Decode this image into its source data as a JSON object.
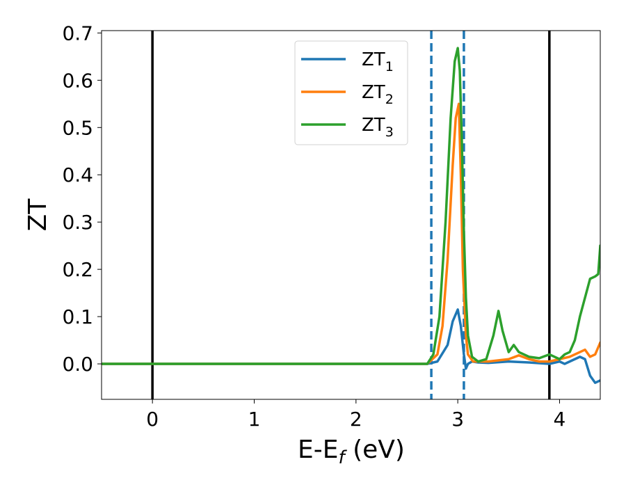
{
  "chart_data": {
    "type": "line",
    "xlabel": "E-E",
    "xlabel_subscript": "f",
    "xlabel_suffix": " (eV)",
    "ylabel": "ZT",
    "xlim": [
      -0.5,
      4.4
    ],
    "ylim": [
      -0.075,
      0.705
    ],
    "x_ticks": [
      0,
      1,
      2,
      3,
      4
    ],
    "y_ticks": [
      0.0,
      0.1,
      0.2,
      0.3,
      0.4,
      0.5,
      0.6,
      0.7
    ],
    "x_tick_labels": [
      "0",
      "1",
      "2",
      "3",
      "4"
    ],
    "y_tick_labels": [
      "0.0",
      "0.1",
      "0.2",
      "0.3",
      "0.4",
      "0.5",
      "0.6",
      "0.7"
    ],
    "grid": false,
    "legend_position": "top-center",
    "vertical_lines": [
      {
        "x": 0.0,
        "style": "solid",
        "color": "#000000"
      },
      {
        "x": 3.9,
        "style": "solid",
        "color": "#000000"
      },
      {
        "x": 2.74,
        "style": "dashed",
        "color": "#1f77b4"
      },
      {
        "x": 3.06,
        "style": "dashed",
        "color": "#1f77b4"
      }
    ],
    "series": [
      {
        "name": "ZT",
        "name_subscript": "1",
        "color": "#1f77b4",
        "x": [
          -0.5,
          2.7,
          2.8,
          2.9,
          2.95,
          3.0,
          3.03,
          3.06,
          3.08,
          3.1,
          3.14,
          3.2,
          3.3,
          3.5,
          3.7,
          3.9,
          4.0,
          4.05,
          4.1,
          4.15,
          4.2,
          4.25,
          4.3,
          4.35,
          4.4
        ],
        "y": [
          0.0,
          0.0,
          0.005,
          0.04,
          0.09,
          0.115,
          0.08,
          0.02,
          -0.01,
          0.0,
          0.005,
          0.003,
          0.002,
          0.005,
          0.003,
          0.0,
          0.005,
          0.0,
          0.005,
          0.01,
          0.015,
          0.01,
          -0.025,
          -0.04,
          -0.035
        ]
      },
      {
        "name": "ZT",
        "name_subscript": "2",
        "color": "#ff7f0e",
        "x": [
          -0.5,
          2.7,
          2.8,
          2.85,
          2.9,
          2.95,
          2.98,
          3.01,
          3.03,
          3.05,
          3.08,
          3.1,
          3.15,
          3.3,
          3.5,
          3.6,
          3.7,
          3.8,
          3.9,
          4.0,
          4.1,
          4.2,
          4.25,
          4.3,
          4.35,
          4.4
        ],
        "y": [
          0.0,
          0.0,
          0.02,
          0.08,
          0.22,
          0.42,
          0.52,
          0.55,
          0.4,
          0.2,
          0.06,
          0.02,
          0.005,
          0.005,
          0.01,
          0.018,
          0.01,
          0.005,
          0.005,
          0.01,
          0.015,
          0.025,
          0.03,
          0.015,
          0.02,
          0.045
        ]
      },
      {
        "name": "ZT",
        "name_subscript": "3",
        "color": "#2ca02c",
        "x": [
          -0.5,
          2.7,
          2.76,
          2.82,
          2.88,
          2.93,
          2.97,
          3.0,
          3.02,
          3.04,
          3.06,
          3.08,
          3.1,
          3.14,
          3.2,
          3.28,
          3.35,
          3.4,
          3.44,
          3.5,
          3.55,
          3.6,
          3.65,
          3.7,
          3.8,
          3.9,
          4.0,
          4.05,
          4.1,
          4.15,
          4.2,
          4.25,
          4.3,
          4.35,
          4.38,
          4.4
        ],
        "y": [
          0.0,
          0.0,
          0.02,
          0.1,
          0.3,
          0.52,
          0.64,
          0.668,
          0.62,
          0.47,
          0.28,
          0.14,
          0.06,
          0.015,
          0.005,
          0.01,
          0.06,
          0.112,
          0.07,
          0.025,
          0.04,
          0.025,
          0.02,
          0.015,
          0.012,
          0.02,
          0.01,
          0.02,
          0.025,
          0.05,
          0.1,
          0.14,
          0.18,
          0.185,
          0.19,
          0.25
        ]
      }
    ]
  }
}
